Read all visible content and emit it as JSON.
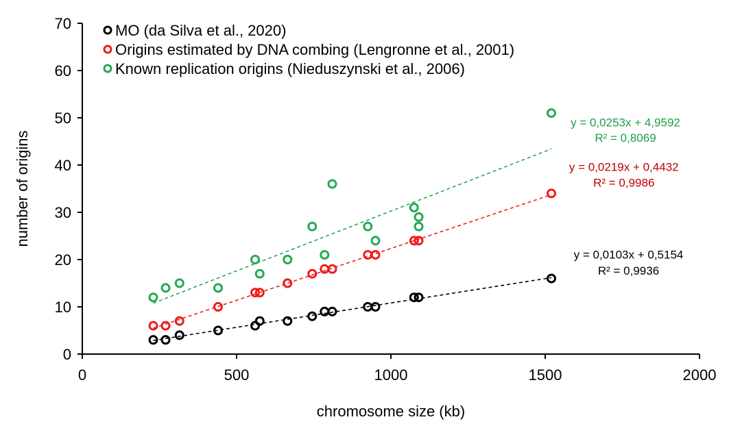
{
  "chart_data": {
    "type": "scatter",
    "xlabel": "chromosome size (kb)",
    "ylabel": "number of origins",
    "xlim": [
      0,
      2000
    ],
    "ylim": [
      0,
      70
    ],
    "x_ticks": [
      "0",
      "500",
      "1000",
      "1500",
      "2000"
    ],
    "y_ticks": [
      "0",
      "10",
      "20",
      "30",
      "40",
      "50",
      "60",
      "70"
    ],
    "grid": false,
    "legend_position": "top-left",
    "series": [
      {
        "name": "MO (da Silva et al., 2020)",
        "color": "#000000",
        "x": [
          230,
          270,
          315,
          440,
          560,
          575,
          665,
          745,
          785,
          810,
          925,
          950,
          1075,
          1090,
          1520
        ],
        "y": [
          3,
          3,
          4,
          5,
          6,
          7,
          7,
          8,
          9,
          9,
          10,
          10,
          12,
          12,
          16
        ],
        "trendline": {
          "slope": 0.0103,
          "intercept": 0.5154,
          "x_range": [
            230,
            1520
          ]
        },
        "equation": "y = 0,0103x + 0,5154",
        "r2": "R² = 0,9936"
      },
      {
        "name": "Origins estimated by DNA combing (Lengronne et al., 2001)",
        "color": "#ee1c1c",
        "eq_color": "#c00000",
        "x": [
          230,
          270,
          315,
          440,
          560,
          575,
          665,
          745,
          785,
          810,
          925,
          950,
          1075,
          1090,
          1520
        ],
        "y": [
          6,
          6,
          7,
          10,
          13,
          13,
          15,
          17,
          18,
          18,
          21,
          21,
          24,
          24,
          34
        ],
        "trendline": {
          "slope": 0.0219,
          "intercept": 0.4432,
          "x_range": [
            230,
            1520
          ]
        },
        "equation": "y = 0,0219x + 0,4432",
        "r2": "R² = 0,9986"
      },
      {
        "name": "Known replication origins (Nieduszynski et al., 2006)",
        "color": "#22aa55",
        "eq_color": "#1a9e4a",
        "x": [
          230,
          270,
          315,
          440,
          560,
          575,
          665,
          745,
          785,
          810,
          925,
          950,
          1075,
          1090,
          1090,
          1520
        ],
        "y": [
          12,
          14,
          15,
          14,
          20,
          17,
          20,
          27,
          21,
          36,
          27,
          24,
          31,
          29,
          27,
          51
        ],
        "trendline": {
          "slope": 0.0253,
          "intercept": 4.9592,
          "x_range": [
            230,
            1520
          ]
        },
        "equation": "y = 0,0253x + 4,9592",
        "r2": "R² = 0,8069"
      }
    ]
  }
}
